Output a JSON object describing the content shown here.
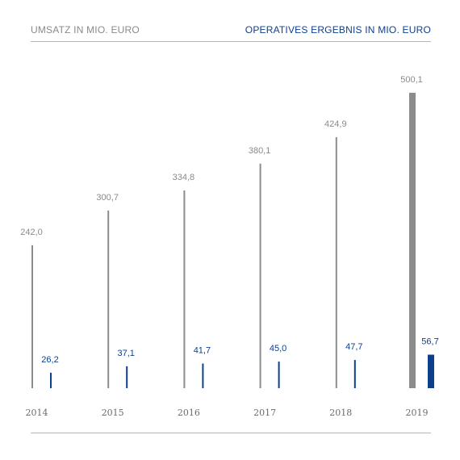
{
  "header": {
    "left_label": "UMSATZ IN MIO. EURO",
    "right_label": "OPERATIVES ERGEBNIS IN MIO. EURO"
  },
  "colors": {
    "revenue": "#8c8c8c",
    "result": "#0d3f8f",
    "revenue_highlight": "#8c8c8c",
    "result_highlight": "#0d3f8f"
  },
  "chart_data": {
    "type": "bar",
    "categories": [
      "2014",
      "2015",
      "2016",
      "2017",
      "2018",
      "2019"
    ],
    "series": [
      {
        "name": "UMSATZ IN MIO. EURO",
        "values": [
          242.0,
          300.7,
          334.8,
          380.1,
          424.9,
          500.1
        ],
        "labels": [
          "242,0",
          "300,7",
          "334,8",
          "380,1",
          "424,9",
          "500,1"
        ]
      },
      {
        "name": "OPERATIVES ERGEBNIS IN MIO. EURO",
        "values": [
          26.2,
          37.1,
          41.7,
          45.0,
          47.7,
          56.7
        ],
        "labels": [
          "26,2",
          "37,1",
          "41,7",
          "45,0",
          "47,7",
          "56,7"
        ]
      }
    ],
    "highlight_category": "2019"
  }
}
